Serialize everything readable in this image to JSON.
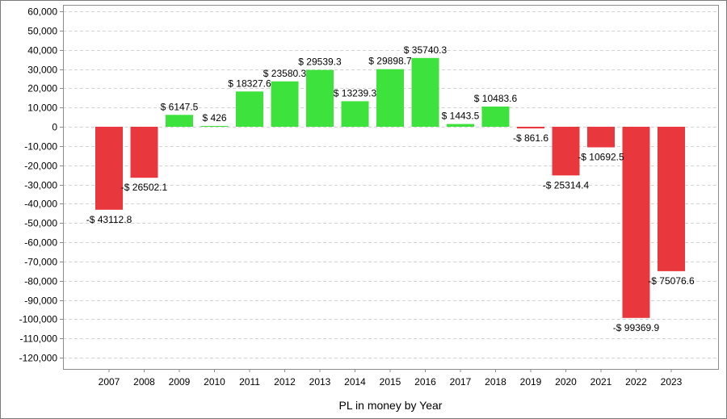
{
  "chart_data": {
    "type": "bar",
    "title": "",
    "xlabel": "PL in money by Year",
    "ylabel": "",
    "ylim": [
      -125000,
      62000
    ],
    "yticks": [
      60000,
      50000,
      40000,
      30000,
      20000,
      10000,
      0,
      -10000,
      -20000,
      -30000,
      -40000,
      -50000,
      -60000,
      -70000,
      -80000,
      -90000,
      -100000,
      -110000,
      -120000
    ],
    "ytick_labels": [
      "60,000",
      "50,000",
      "40,000",
      "30,000",
      "20,000",
      "10,000",
      "0",
      "-10,000",
      "-20,000",
      "-30,000",
      "-40,000",
      "-50,000",
      "-60,000",
      "-70,000",
      "-80,000",
      "-90,000",
      "-100,000",
      "-110,000",
      "-120,000"
    ],
    "grid": true,
    "legend": "none",
    "colors": {
      "positive": "#3de23d",
      "negative": "#e8383d",
      "grid": "#d4d4d4",
      "axis": "#8c8c8c"
    },
    "categories": [
      "2007",
      "2008",
      "2009",
      "2010",
      "2011",
      "2012",
      "2013",
      "2014",
      "2015",
      "2016",
      "2017",
      "2018",
      "2019",
      "2020",
      "2021",
      "2022",
      "2023"
    ],
    "values": [
      -43112.8,
      -26502.1,
      6147.5,
      426,
      18327.6,
      23580.3,
      29539.3,
      13239.3,
      29898.7,
      35740.3,
      1443.5,
      10483.6,
      -861.6,
      -25314.4,
      -10692.5,
      -99369.9,
      -75076.6
    ],
    "data_labels": [
      "-$ 43112.8",
      "-$ 26502.1",
      "$ 6147.5",
      "$ 426",
      "$ 18327.6",
      "$ 23580.3",
      "$ 29539.3",
      "$ 13239.3",
      "$ 29898.7",
      "$ 35740.3",
      "$ 1443.5",
      "$ 10483.6",
      "-$ 861.6",
      "-$ 25314.4",
      "-$ 10692.5",
      "-$ 99369.9",
      "-$ 75076.6"
    ]
  }
}
